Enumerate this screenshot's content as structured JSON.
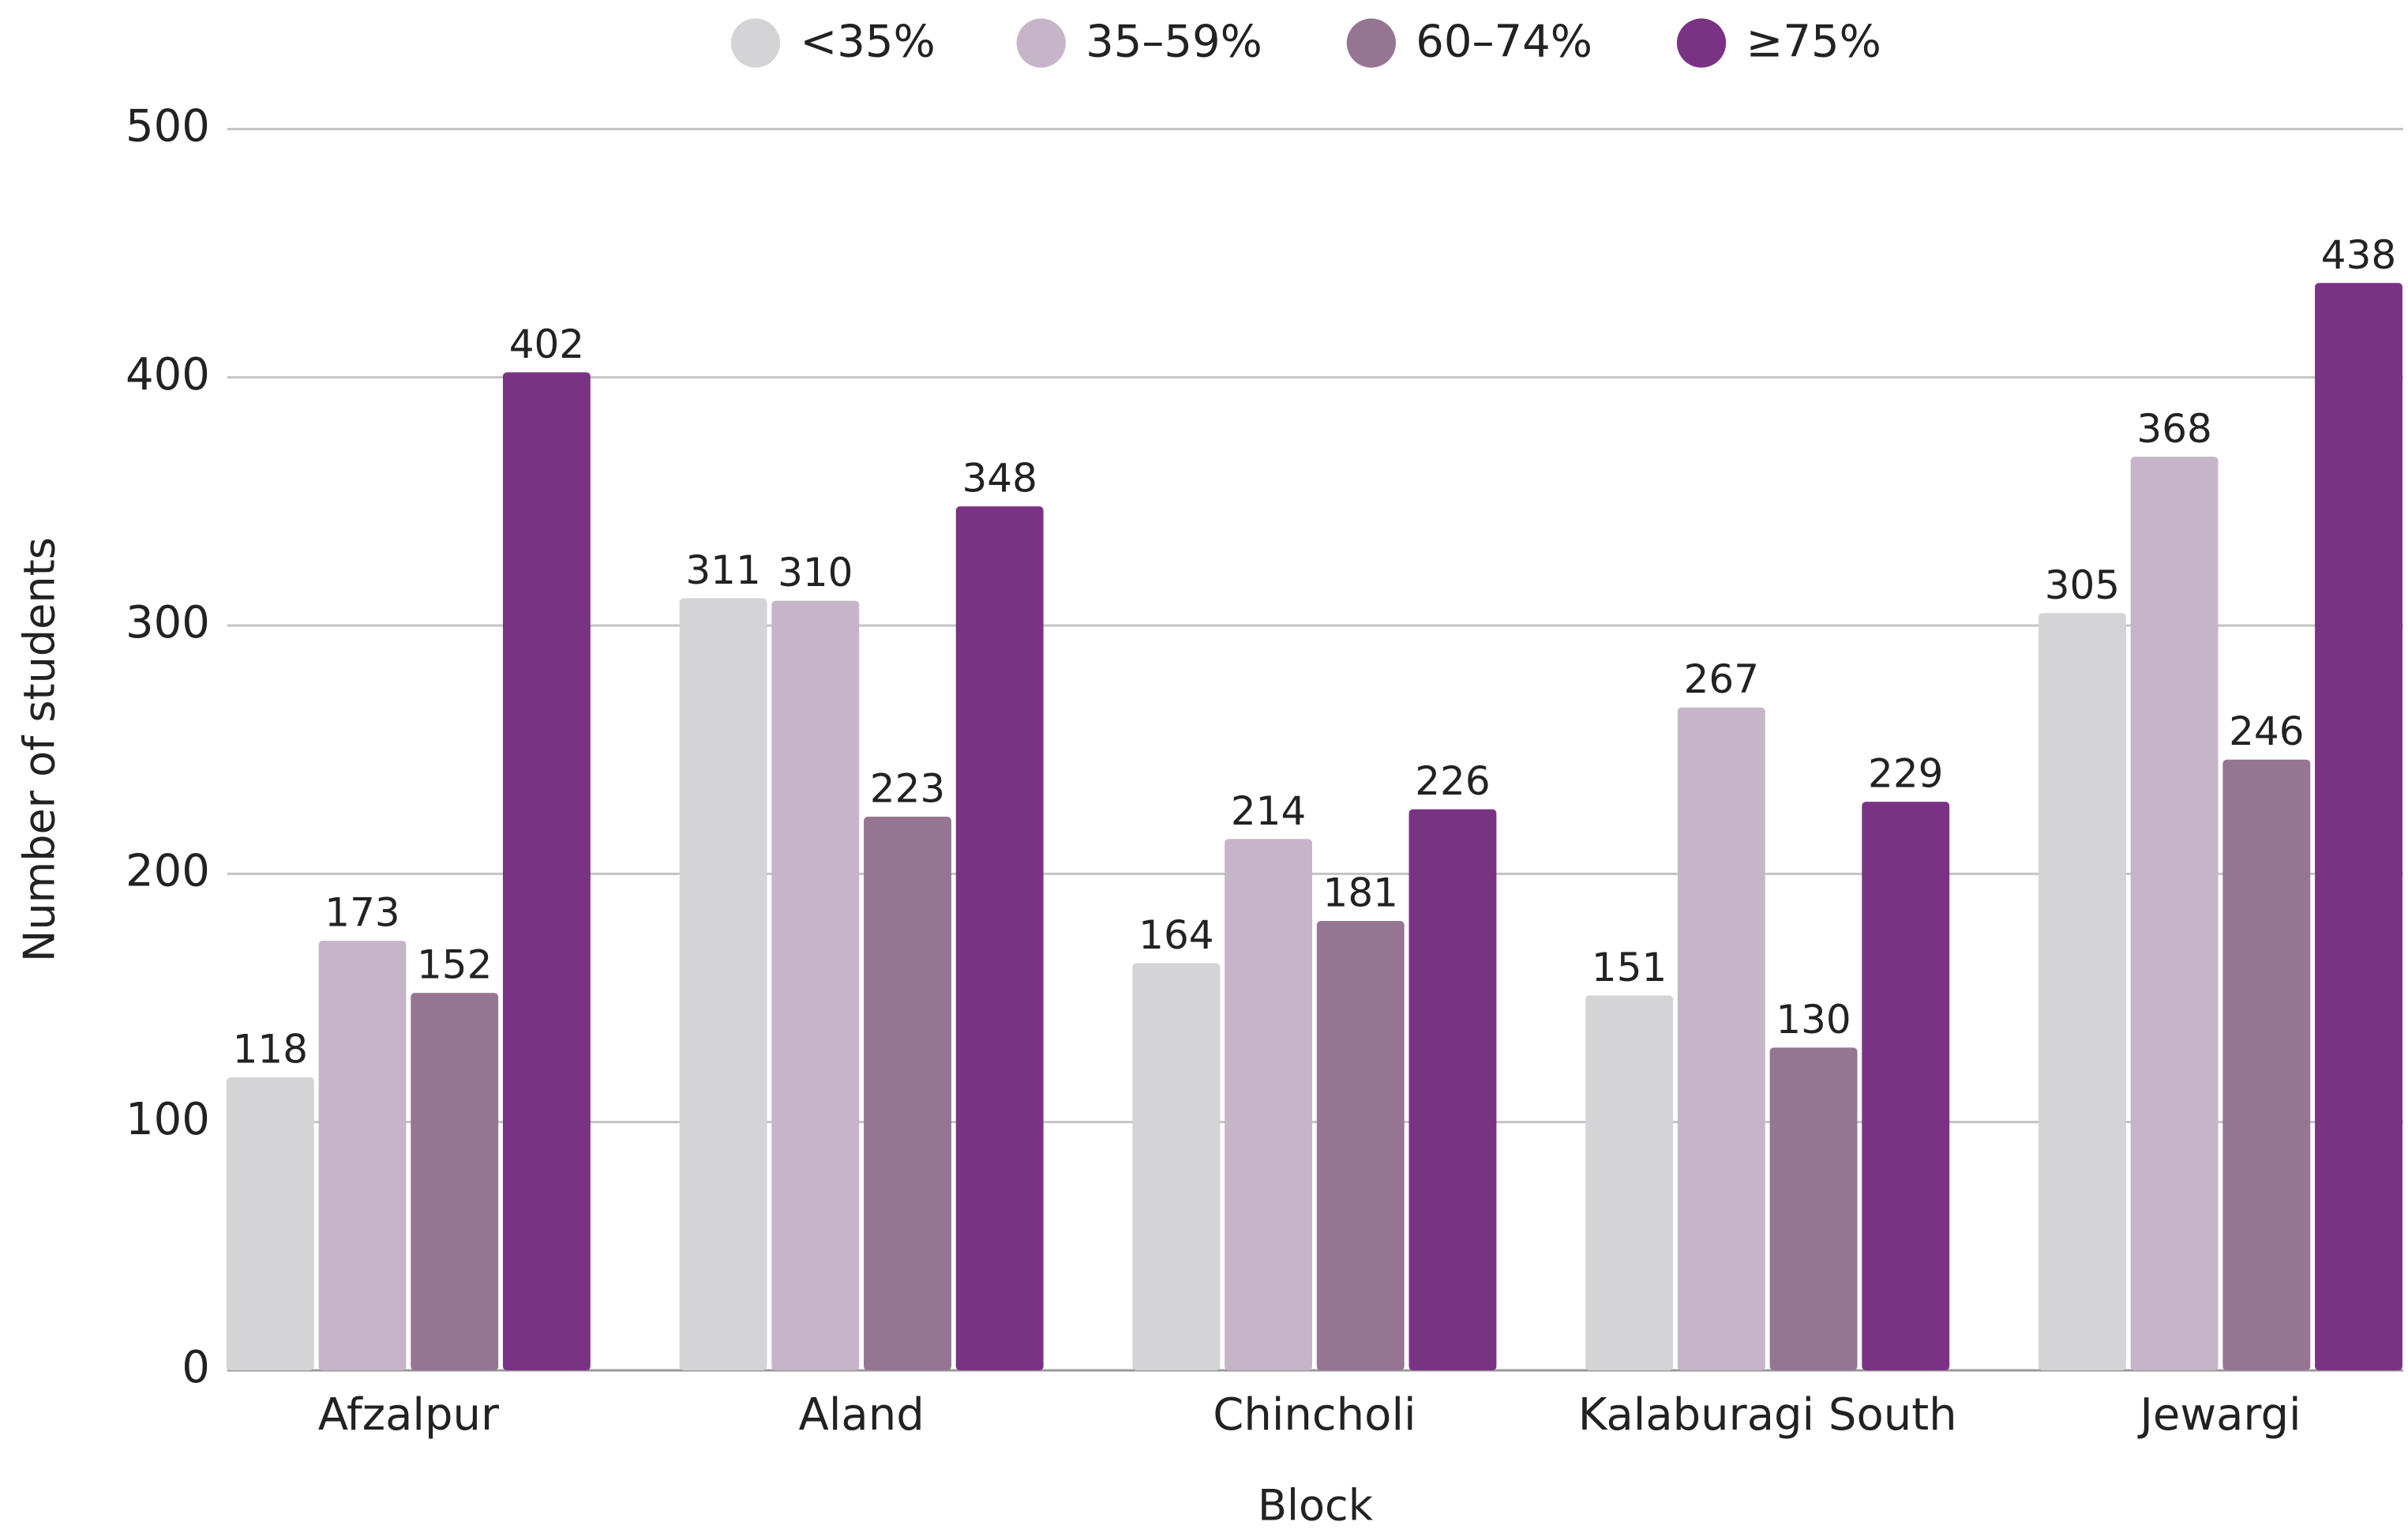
{
  "chart_data": {
    "type": "bar",
    "x_label": "Block",
    "y_label": "Number of students",
    "categories": [
      "Afzalpur",
      "Aland",
      "Chincholi",
      "Kalaburagi South",
      "Jewargi"
    ],
    "series": [
      {
        "name": "<35%",
        "color": "#d4d4d6",
        "values": [
          118,
          311,
          164,
          151,
          305
        ]
      },
      {
        "name": "35–59%",
        "color": "#c6b5c8",
        "values": [
          173,
          310,
          214,
          267,
          368
        ]
      },
      {
        "name": "60–74%",
        "color": "#967593",
        "values": [
          152,
          223,
          181,
          130,
          246
        ]
      },
      {
        "name": "≥75%",
        "color": "#7a3384",
        "values": [
          402,
          348,
          226,
          229,
          438
        ]
      }
    ],
    "ylim": [
      0,
      500
    ],
    "yticks": [
      0,
      100,
      200,
      300,
      400,
      500
    ],
    "grid": true,
    "legend": "top"
  }
}
